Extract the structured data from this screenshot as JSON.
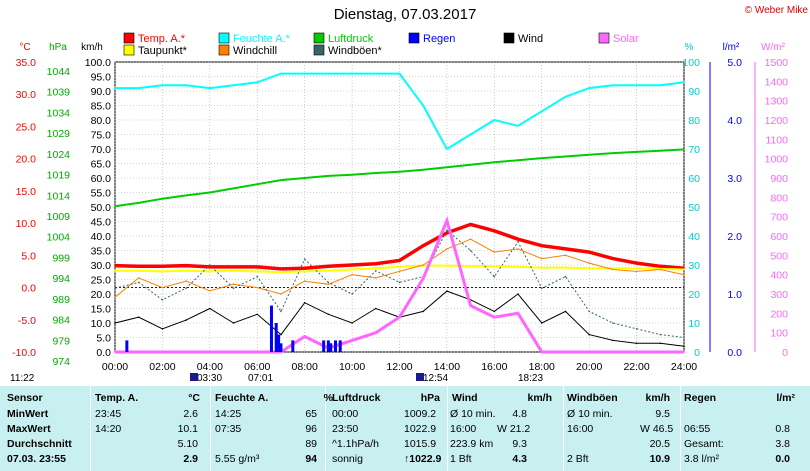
{
  "title": "Dienstag, 07.03.2017",
  "copyright": "© Weber Mike",
  "legend": [
    {
      "label": "Temp. A.*",
      "color": "#ff0000"
    },
    {
      "label": "Feuchte A.*",
      "color": "#00ffff"
    },
    {
      "label": "Luftdruck",
      "color": "#00cc00"
    },
    {
      "label": "Regen",
      "color": "#0000ff"
    },
    {
      "label": "Wind",
      "color": "#000000"
    },
    {
      "label": "Solar",
      "color": "#ff66ff"
    },
    {
      "label": "Taupunkt*",
      "color": "#ffff00"
    },
    {
      "label": "Windchill",
      "color": "#ff8000"
    },
    {
      "label": "Windböen*",
      "color": "#3c6464"
    }
  ],
  "axis_units": {
    "temp": "°C",
    "pressure": "hPa",
    "wind": "km/h",
    "humidity": "%",
    "rain": "l/m²",
    "solar": "W/m²"
  },
  "axis_ticks": {
    "temp": [
      "35.0",
      "30.0",
      "25.0",
      "20.0",
      "15.0",
      "10.0",
      "5.0",
      "0.0",
      "-5.0",
      "-10.0"
    ],
    "pressure": [
      "1044",
      "1039",
      "1034",
      "1029",
      "1024",
      "1019",
      "1014",
      "1009",
      "1004",
      "999",
      "994",
      "989",
      "984",
      "979",
      "974"
    ],
    "wind": [
      "100.0",
      "95.0",
      "90.0",
      "85.0",
      "80.0",
      "75.0",
      "70.0",
      "65.0",
      "60.0",
      "55.0",
      "50.0",
      "45.0",
      "40.0",
      "35.0",
      "30.0",
      "25.0",
      "20.0",
      "15.0",
      "10.0",
      "5.0",
      "0.0"
    ],
    "humidity": [
      "100",
      "90",
      "80",
      "70",
      "60",
      "50",
      "40",
      "30",
      "20",
      "10",
      "0"
    ],
    "rain": [
      "5.0",
      "4.0",
      "3.0",
      "2.0",
      "1.0",
      "0.0"
    ],
    "solar": [
      "1500",
      "1400",
      "1300",
      "1200",
      "1100",
      "1000",
      "900",
      "800",
      "700",
      "600",
      "500",
      "400",
      "300",
      "200",
      "100",
      "0"
    ],
    "time": [
      "00:00",
      "02:00",
      "04:00",
      "06:00",
      "08:00",
      "10:00",
      "12:00",
      "14:00",
      "16:00",
      "18:00",
      "20:00",
      "22:00",
      "24:00"
    ]
  },
  "sun_markers": {
    "left": "11:22",
    "sunrise": "03:30",
    "sunrise2": "07:01",
    "noon": "12:54",
    "sunset": "18:23"
  },
  "chart_data": {
    "type": "line",
    "title": "Dienstag, 07.03.2017",
    "x": [
      0,
      1,
      2,
      3,
      4,
      5,
      6,
      7,
      8,
      9,
      10,
      11,
      12,
      13,
      14,
      15,
      16,
      17,
      18,
      19,
      20,
      21,
      22,
      23,
      24
    ],
    "xlabel": "",
    "xlim": [
      0,
      24
    ],
    "series": [
      {
        "name": "Temp. A.*",
        "axis": "temp",
        "color": "#ff0000",
        "values": [
          3.4,
          3.3,
          3.3,
          3.4,
          3.2,
          3.2,
          3.2,
          2.9,
          3.0,
          3.3,
          3.5,
          3.7,
          4.2,
          6.5,
          8.5,
          9.8,
          8.8,
          7.5,
          6.5,
          6.0,
          5.5,
          4.5,
          3.8,
          3.3,
          3.0
        ]
      },
      {
        "name": "Feuchte A.*",
        "axis": "humidity",
        "color": "#00ffff",
        "values": [
          91,
          91,
          92,
          92,
          91,
          92,
          93,
          96,
          96,
          96,
          96,
          96,
          96,
          85,
          70,
          75,
          80,
          78,
          83,
          88,
          91,
          92,
          92,
          92,
          93
        ]
      },
      {
        "name": "Luftdruck",
        "axis": "pressure",
        "color": "#00cc00",
        "values": [
          1009.2,
          1010.0,
          1011.0,
          1011.8,
          1012.5,
          1013.5,
          1014.5,
          1015.5,
          1016.0,
          1016.5,
          1016.8,
          1017.2,
          1017.5,
          1018.0,
          1018.6,
          1019.2,
          1019.8,
          1020.3,
          1020.8,
          1021.2,
          1021.6,
          1022.0,
          1022.3,
          1022.6,
          1022.9
        ]
      },
      {
        "name": "Taupunkt*",
        "axis": "temp",
        "color": "#ffff00",
        "values": [
          2.6,
          2.6,
          2.5,
          2.6,
          2.5,
          2.6,
          2.5,
          2.4,
          2.5,
          2.6,
          2.8,
          3.0,
          3.2,
          3.4,
          3.4,
          3.3,
          3.3,
          3.2,
          3.1,
          3.1,
          3.0,
          3.0,
          3.0,
          2.9,
          2.8
        ]
      },
      {
        "name": "Windchill",
        "axis": "temp",
        "color": "#ff8000",
        "values": [
          -1.5,
          1.5,
          0.0,
          1.0,
          -0.5,
          0.5,
          0.0,
          -1.0,
          1.0,
          0.5,
          2.0,
          1.5,
          2.5,
          3.5,
          6.0,
          7.5,
          5.5,
          6.0,
          4.5,
          5.0,
          3.8,
          2.8,
          2.5,
          2.8,
          2.0
        ]
      },
      {
        "name": "Wind",
        "axis": "wind",
        "color": "#000000",
        "values": [
          10,
          12,
          8,
          11,
          15,
          10,
          13,
          6,
          17,
          13,
          10,
          15,
          12,
          14,
          21,
          18,
          14,
          20,
          10,
          14,
          6,
          4,
          3,
          3,
          2
        ]
      },
      {
        "name": "Windböen*",
        "axis": "wind",
        "color": "#3c6464",
        "values": [
          22,
          24,
          18,
          22,
          30,
          22,
          26,
          14,
          32,
          24,
          20,
          28,
          24,
          26,
          42,
          35,
          26,
          38,
          22,
          26,
          14,
          10,
          8,
          6,
          5
        ]
      },
      {
        "name": "Solar",
        "axis": "solar",
        "color": "#ff66ff",
        "values": [
          0,
          0,
          0,
          0,
          0,
          0,
          0,
          0,
          80,
          20,
          60,
          100,
          180,
          380,
          680,
          240,
          180,
          200,
          0,
          0,
          0,
          0,
          0,
          0,
          0
        ]
      },
      {
        "name": "Regen",
        "axis": "rain",
        "color": "#0000ff",
        "type": "bar",
        "x": [
          0.5,
          6.6,
          6.8,
          6.9,
          7.0,
          7.5,
          8.8,
          9.0,
          9.1,
          9.3,
          9.5
        ],
        "values": [
          0.2,
          0.8,
          0.5,
          0.3,
          0.15,
          0.2,
          0.2,
          0.2,
          0.15,
          0.2,
          0.2
        ]
      }
    ],
    "grid": true
  },
  "stats": {
    "headers": [
      "Sensor",
      "Temp. A.",
      "°C",
      "Feuchte A.",
      "%",
      "Luftdruck",
      "hPa",
      "Wind",
      "km/h",
      "Windböen",
      "km/h",
      "Regen",
      "l/m²"
    ],
    "rows": [
      {
        "label": "MinWert",
        "cells": [
          "23:45",
          "2.6",
          "14:25",
          "65",
          "00:00",
          "1009.2",
          "Ø 10 min.",
          "4.8",
          "Ø 10 min.",
          "9.5",
          "",
          ""
        ]
      },
      {
        "label": "MaxWert",
        "cells": [
          "14:20",
          "10.1",
          "07:35",
          "96",
          "23:50",
          "1022.9",
          "16:00",
          "W 21.2",
          "16:00",
          "W 46.5",
          "06:55",
          "0.8"
        ]
      },
      {
        "label": "Durchschnitt",
        "cells": [
          "",
          "5.10",
          "",
          "89",
          "^1.1hPa/h",
          "1015.9",
          "223.9 km",
          "9.3",
          "",
          "20.5",
          "Gesamt:",
          "3.8"
        ]
      },
      {
        "label": "07.03. 23:55",
        "cells": [
          "",
          "2.9",
          "5.55 g/m³",
          "94",
          "sonnig",
          "↑1022.9",
          "1 Bft",
          "4.3",
          "2 Bft",
          "10.9",
          "3.8 l/m²",
          "0.0"
        ]
      }
    ]
  }
}
